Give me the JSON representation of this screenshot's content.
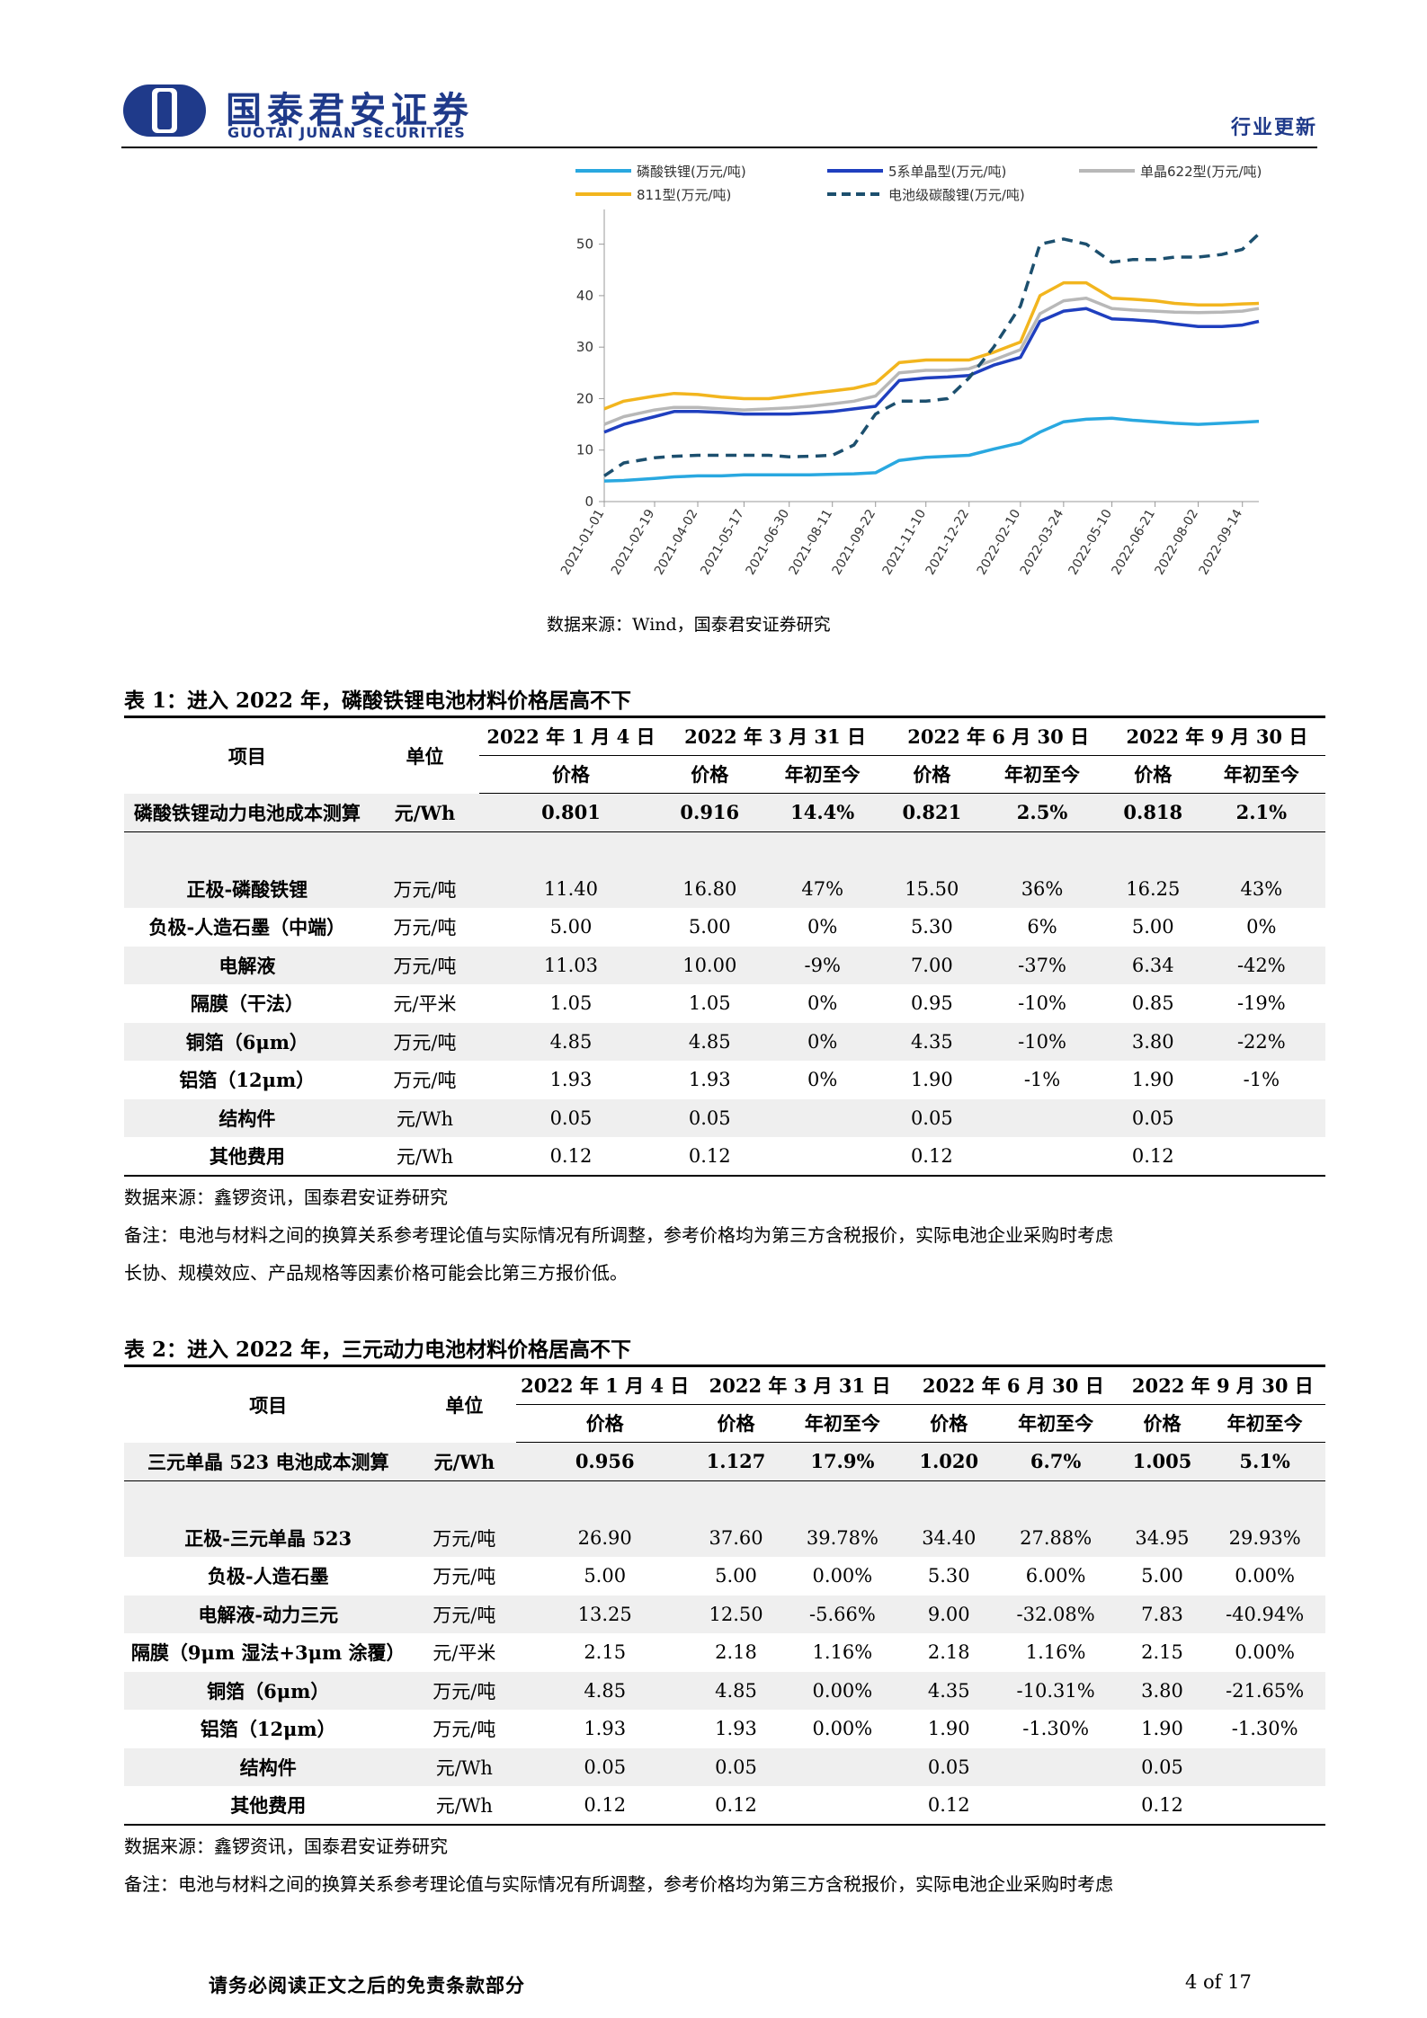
{
  "header": {
    "company_cn": "国泰君安证券",
    "company_en": "GUOTAI JUNAN SECURITIES",
    "section": "行业更新"
  },
  "figure": {
    "source": "数据来源：Wind，国泰君安证券研究"
  },
  "chart_data": {
    "type": "line",
    "title": "",
    "xlabel": "",
    "ylabel": "",
    "ylim": [
      0,
      55
    ],
    "yticks": [
      0,
      10,
      20,
      30,
      40,
      50
    ],
    "grid": false,
    "legend_position": "top",
    "x_tick_labels": [
      "2021-01-01",
      "2021-02-19",
      "2021-04-02",
      "2021-05-17",
      "2021-06-30",
      "2021-08-11",
      "2021-09-22",
      "2021-11-10",
      "2021-12-22",
      "2022-02-10",
      "2022-03-24",
      "2022-05-10",
      "2022-06-21",
      "2022-08-02",
      "2022-09-14"
    ],
    "x": [
      "2021-01-01",
      "2021-01-20",
      "2021-02-19",
      "2021-03-10",
      "2021-04-02",
      "2021-04-25",
      "2021-05-17",
      "2021-06-10",
      "2021-06-30",
      "2021-07-20",
      "2021-08-11",
      "2021-09-01",
      "2021-09-22",
      "2021-10-15",
      "2021-11-10",
      "2021-12-01",
      "2021-12-22",
      "2022-01-15",
      "2022-02-10",
      "2022-03-01",
      "2022-03-24",
      "2022-04-15",
      "2022-05-10",
      "2022-05-30",
      "2022-06-21",
      "2022-07-10",
      "2022-08-02",
      "2022-08-25",
      "2022-09-14",
      "2022-09-30"
    ],
    "series": [
      {
        "name": "磷酸铁锂(万元/吨)",
        "color": "#29a8e0",
        "dash": false,
        "values": [
          4.0,
          4.1,
          4.5,
          4.8,
          5.0,
          5.0,
          5.2,
          5.2,
          5.2,
          5.2,
          5.3,
          5.4,
          5.6,
          8.0,
          8.6,
          8.8,
          9.0,
          10.2,
          11.4,
          13.5,
          15.5,
          16.0,
          16.2,
          15.8,
          15.5,
          15.2,
          15.0,
          15.2,
          15.4,
          15.6
        ]
      },
      {
        "name": "5系单晶型(万元/吨)",
        "color": "#1f3fbf",
        "dash": false,
        "values": [
          13.5,
          15.0,
          16.5,
          17.5,
          17.5,
          17.3,
          17.0,
          17.0,
          17.0,
          17.2,
          17.5,
          18.0,
          18.5,
          23.5,
          24.0,
          24.2,
          24.5,
          26.5,
          28.0,
          35.0,
          37.0,
          37.5,
          35.5,
          35.3,
          35.0,
          34.5,
          34.0,
          34.0,
          34.3,
          35.0
        ]
      },
      {
        "name": "单晶622型(万元/吨)",
        "color": "#b8b8b8",
        "dash": false,
        "values": [
          15.0,
          16.5,
          17.8,
          18.3,
          18.3,
          18.0,
          17.8,
          18.0,
          18.2,
          18.5,
          19.0,
          19.5,
          20.5,
          25.0,
          25.5,
          25.5,
          25.8,
          27.5,
          29.5,
          36.5,
          39.0,
          39.5,
          37.5,
          37.2,
          37.0,
          36.8,
          36.7,
          36.8,
          37.0,
          37.5
        ]
      },
      {
        "name": "811型(万元/吨)",
        "color": "#f2b51e",
        "dash": false,
        "values": [
          18.0,
          19.5,
          20.5,
          21.0,
          20.8,
          20.3,
          20.0,
          20.0,
          20.5,
          21.0,
          21.5,
          22.0,
          23.0,
          27.0,
          27.5,
          27.5,
          27.5,
          29.0,
          31.0,
          40.0,
          42.5,
          42.5,
          39.5,
          39.3,
          39.0,
          38.5,
          38.2,
          38.2,
          38.4,
          38.5
        ]
      },
      {
        "name": "电池级碳酸锂(万元/吨)",
        "color": "#1c4f6e",
        "dash": true,
        "values": [
          5.0,
          7.5,
          8.5,
          8.8,
          9.0,
          9.0,
          9.0,
          9.0,
          8.7,
          8.8,
          9.0,
          11.0,
          17.0,
          19.5,
          19.5,
          20.0,
          24.0,
          30.0,
          38.0,
          50.0,
          51.0,
          50.0,
          46.5,
          47.0,
          47.0,
          47.5,
          47.5,
          48.0,
          49.0,
          52.0
        ]
      }
    ]
  },
  "table1": {
    "caption": "表 1：进入 2022 年，磷酸铁锂电池材料价格居高不下",
    "head": {
      "item": "项目",
      "unit": "单位",
      "dates": [
        "2022 年 1 月 4 日",
        "2022 年 3 月 31 日",
        "2022 年 6 月 30 日",
        "2022 年 9 月 30 日"
      ],
      "price": "价格",
      "ytd": "年初至今"
    },
    "total": {
      "name": "磷酸铁锂动力电池成本测算",
      "unit": "元/Wh",
      "v": [
        "0.801",
        "0.916",
        "14.4%",
        "0.821",
        "2.5%",
        "0.818",
        "2.1%"
      ]
    },
    "rows": [
      {
        "name": "正极-磷酸铁锂",
        "unit": "万元/吨",
        "v": [
          "11.40",
          "16.80",
          "47%",
          "15.50",
          "36%",
          "16.25",
          "43%"
        ]
      },
      {
        "name": "负极-人造石墨（中端）",
        "unit": "万元/吨",
        "v": [
          "5.00",
          "5.00",
          "0%",
          "5.30",
          "6%",
          "5.00",
          "0%"
        ]
      },
      {
        "name": "电解液",
        "unit": "万元/吨",
        "v": [
          "11.03",
          "10.00",
          "-9%",
          "7.00",
          "-37%",
          "6.34",
          "-42%"
        ]
      },
      {
        "name": "隔膜（干法）",
        "unit": "元/平米",
        "v": [
          "1.05",
          "1.05",
          "0%",
          "0.95",
          "-10%",
          "0.85",
          "-19%"
        ]
      },
      {
        "name": "铜箔（6μm）",
        "unit": "万元/吨",
        "v": [
          "4.85",
          "4.85",
          "0%",
          "4.35",
          "-10%",
          "3.80",
          "-22%"
        ]
      },
      {
        "name": "铝箔（12μm）",
        "unit": "万元/吨",
        "v": [
          "1.93",
          "1.93",
          "0%",
          "1.90",
          "-1%",
          "1.90",
          "-1%"
        ]
      },
      {
        "name": "结构件",
        "unit": "元/Wh",
        "v": [
          "0.05",
          "0.05",
          "",
          "0.05",
          "",
          "0.05",
          ""
        ]
      },
      {
        "name": "其他费用",
        "unit": "元/Wh",
        "v": [
          "0.12",
          "0.12",
          "",
          "0.12",
          "",
          "0.12",
          ""
        ]
      }
    ],
    "source": "数据来源：鑫锣资讯，国泰君安证券研究",
    "note_line1": "备注：电池与材料之间的换算关系参考理论值与实际情况有所调整，参考价格均为第三方含税报价，实际电池企业采购时考虑",
    "note_line2": "长协、规模效应、产品规格等因素价格可能会比第三方报价低。"
  },
  "table2": {
    "caption": "表 2：进入 2022 年，三元动力电池材料价格居高不下",
    "head": {
      "item": "项目",
      "unit": "单位",
      "dates": [
        "2022 年 1 月 4 日",
        "2022 年 3 月 31 日",
        "2022 年 6 月 30 日",
        "2022 年 9 月 30 日"
      ],
      "price": "价格",
      "ytd": "年初至今"
    },
    "total": {
      "name": "三元单晶 523 电池成本测算",
      "unit": "元/Wh",
      "v": [
        "0.956",
        "1.127",
        "17.9%",
        "1.020",
        "6.7%",
        "1.005",
        "5.1%"
      ]
    },
    "rows": [
      {
        "name": "正极-三元单晶 523",
        "unit": "万元/吨",
        "v": [
          "26.90",
          "37.60",
          "39.78%",
          "34.40",
          "27.88%",
          "34.95",
          "29.93%"
        ]
      },
      {
        "name": "负极-人造石墨",
        "unit": "万元/吨",
        "v": [
          "5.00",
          "5.00",
          "0.00%",
          "5.30",
          "6.00%",
          "5.00",
          "0.00%"
        ]
      },
      {
        "name": "电解液-动力三元",
        "unit": "万元/吨",
        "v": [
          "13.25",
          "12.50",
          "-5.66%",
          "9.00",
          "-32.08%",
          "7.83",
          "-40.94%"
        ]
      },
      {
        "name": "隔膜（9μm 湿法+3μm 涂覆）",
        "unit": "元/平米",
        "v": [
          "2.15",
          "2.18",
          "1.16%",
          "2.18",
          "1.16%",
          "2.15",
          "0.00%"
        ]
      },
      {
        "name": "铜箔（6μm）",
        "unit": "万元/吨",
        "v": [
          "4.85",
          "4.85",
          "0.00%",
          "4.35",
          "-10.31%",
          "3.80",
          "-21.65%"
        ]
      },
      {
        "name": "铝箔（12μm）",
        "unit": "万元/吨",
        "v": [
          "1.93",
          "1.93",
          "0.00%",
          "1.90",
          "-1.30%",
          "1.90",
          "-1.30%"
        ]
      },
      {
        "name": "结构件",
        "unit": "元/Wh",
        "v": [
          "0.05",
          "0.05",
          "",
          "0.05",
          "",
          "0.05",
          ""
        ]
      },
      {
        "name": "其他费用",
        "unit": "元/Wh",
        "v": [
          "0.12",
          "0.12",
          "",
          "0.12",
          "",
          "0.12",
          ""
        ]
      }
    ],
    "source": "数据来源：鑫锣资讯，国泰君安证券研究",
    "note_line1": "备注：电池与材料之间的换算关系参考理论值与实际情况有所调整，参考价格均为第三方含税报价，实际电池企业采购时考虑"
  },
  "footer": {
    "disclaimer": "请务必阅读正文之后的免责条款部分",
    "page": "4 of 17"
  }
}
